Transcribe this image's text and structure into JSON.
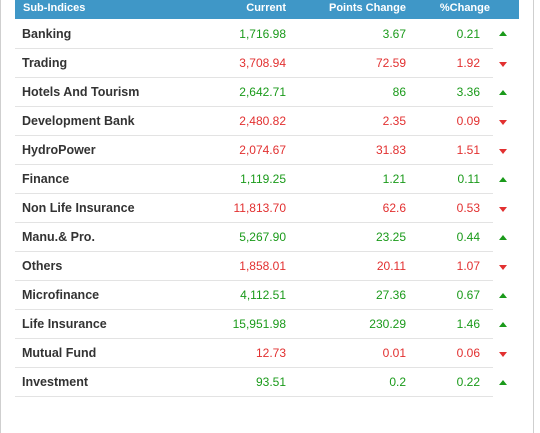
{
  "colors": {
    "header_bg": "#3f97c7",
    "up": "#1a9a1a",
    "down": "#e23030"
  },
  "table": {
    "headers": {
      "name": "Sub-Indices",
      "current": "Current",
      "points": "Points Change",
      "pct": "%Change"
    },
    "rows": [
      {
        "name": "Banking",
        "current": "1,716.98",
        "points": "3.67",
        "pct": "0.21",
        "direction": "up"
      },
      {
        "name": "Trading",
        "current": "3,708.94",
        "points": "72.59",
        "pct": "1.92",
        "direction": "down"
      },
      {
        "name": "Hotels And Tourism",
        "current": "2,642.71",
        "points": "86",
        "pct": "3.36",
        "direction": "up"
      },
      {
        "name": "Development Bank",
        "current": "2,480.82",
        "points": "2.35",
        "pct": "0.09",
        "direction": "down"
      },
      {
        "name": "HydroPower",
        "current": "2,074.67",
        "points": "31.83",
        "pct": "1.51",
        "direction": "down"
      },
      {
        "name": "Finance",
        "current": "1,119.25",
        "points": "1.21",
        "pct": "0.11",
        "direction": "up"
      },
      {
        "name": "Non Life Insurance",
        "current": "11,813.70",
        "points": "62.6",
        "pct": "0.53",
        "direction": "down"
      },
      {
        "name": "Manu.& Pro.",
        "current": "5,267.90",
        "points": "23.25",
        "pct": "0.44",
        "direction": "up"
      },
      {
        "name": "Others",
        "current": "1,858.01",
        "points": "20.11",
        "pct": "1.07",
        "direction": "down"
      },
      {
        "name": "Microfinance",
        "current": "4,112.51",
        "points": "27.36",
        "pct": "0.67",
        "direction": "up"
      },
      {
        "name": "Life Insurance",
        "current": "15,951.98",
        "points": "230.29",
        "pct": "1.46",
        "direction": "up"
      },
      {
        "name": "Mutual Fund",
        "current": "12.73",
        "points": "0.01",
        "pct": "0.06",
        "direction": "down"
      },
      {
        "name": "Investment",
        "current": "93.51",
        "points": "0.2",
        "pct": "0.22",
        "direction": "up"
      }
    ]
  }
}
